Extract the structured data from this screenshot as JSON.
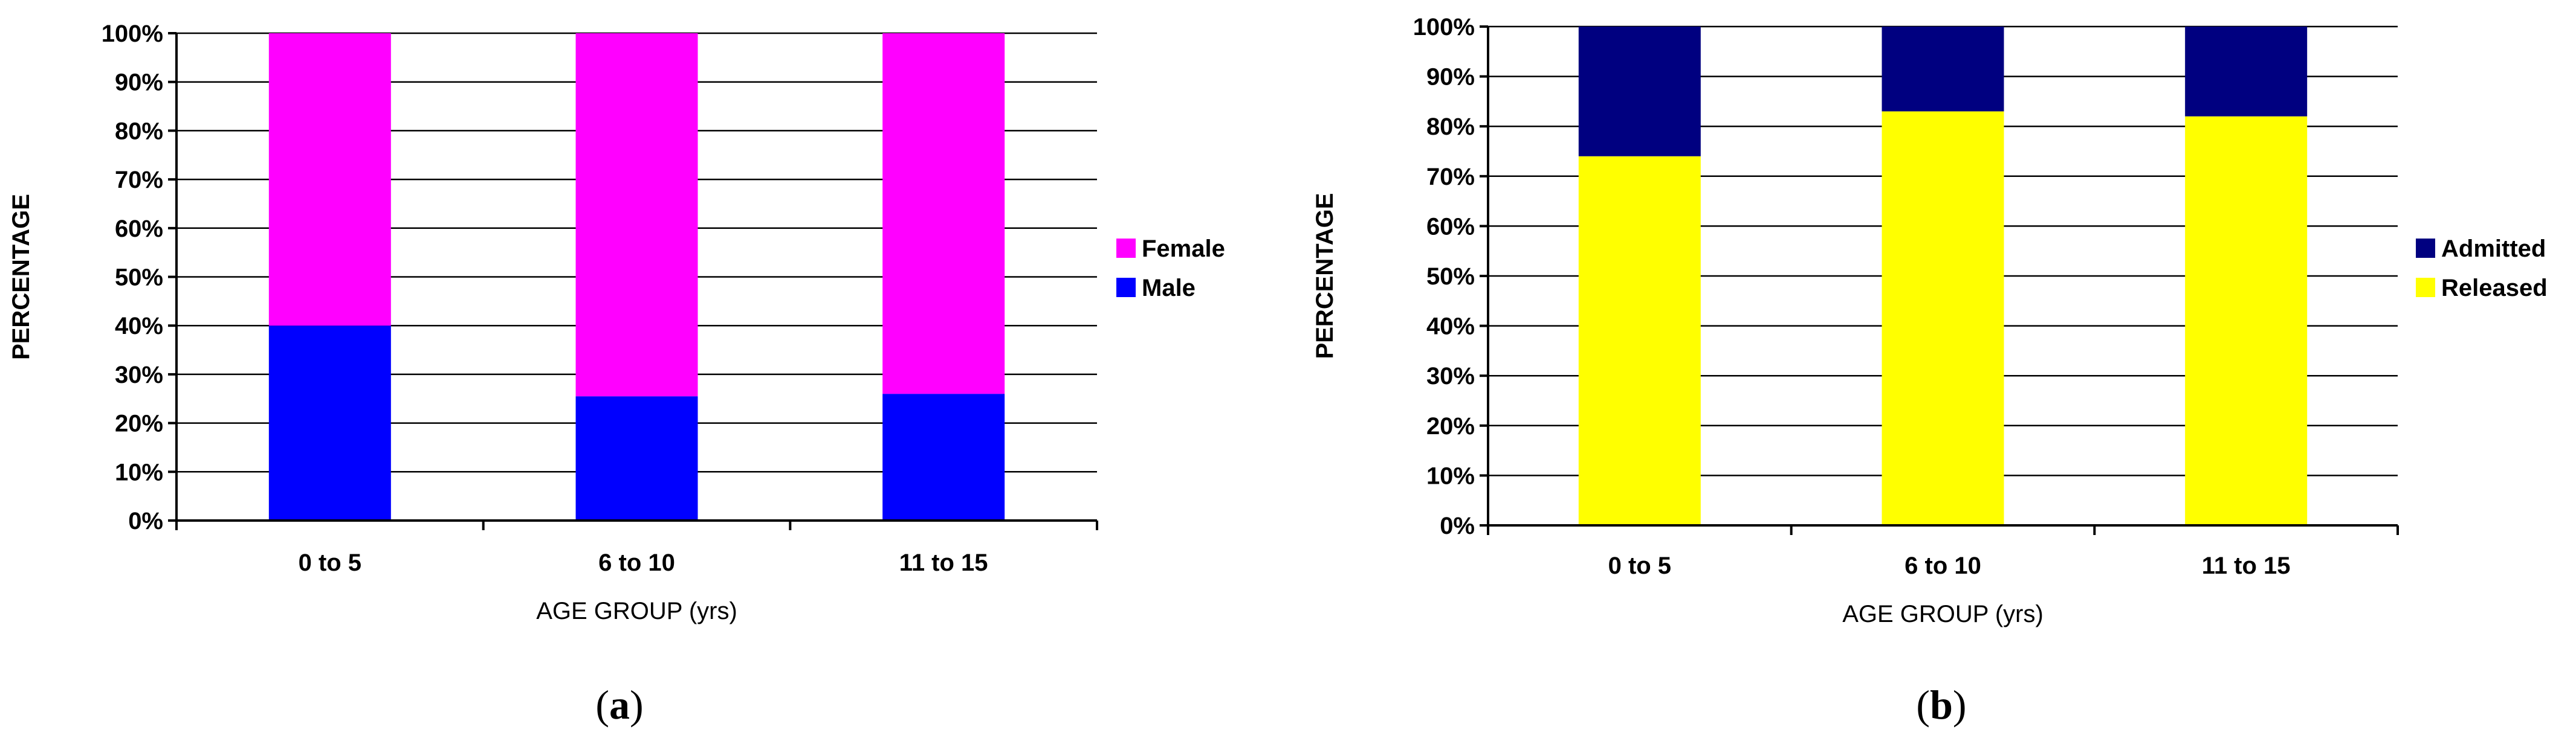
{
  "chart_data": [
    {
      "type": "bar",
      "stacked": true,
      "caption": "(a)",
      "categories": [
        "0 to 5",
        "6 to 10",
        "11 to 15"
      ],
      "series": [
        {
          "name": "Male",
          "color": "#0000ff",
          "values": [
            40,
            25.5,
            26
          ]
        },
        {
          "name": "Female",
          "color": "#ff00ff",
          "values": [
            60,
            74.5,
            74
          ]
        }
      ],
      "xlabel": "AGE GROUP (yrs)",
      "ylabel": "PERCENTAGE",
      "ylim": [
        0,
        100
      ],
      "yticks": [
        "0%",
        "10%",
        "20%",
        "30%",
        "40%",
        "50%",
        "60%",
        "70%",
        "80%",
        "90%",
        "100%"
      ],
      "grid": true,
      "legend_position": "right",
      "legend_order": [
        "Female",
        "Male"
      ]
    },
    {
      "type": "bar",
      "stacked": true,
      "caption": "(b)",
      "categories": [
        "0 to 5",
        "6 to 10",
        "11 to 15"
      ],
      "series": [
        {
          "name": "Released",
          "color": "#ffff00",
          "values": [
            74,
            83,
            82
          ]
        },
        {
          "name": "Admitted",
          "color": "#000080",
          "values": [
            26,
            17,
            18
          ]
        }
      ],
      "xlabel": "AGE GROUP (yrs)",
      "ylabel": "PERCENTAGE",
      "ylim": [
        0,
        100
      ],
      "yticks": [
        "0%",
        "10%",
        "20%",
        "30%",
        "40%",
        "50%",
        "60%",
        "70%",
        "80%",
        "90%",
        "100%"
      ],
      "grid": true,
      "legend_position": "right",
      "legend_order": [
        "Admitted",
        "Released"
      ]
    }
  ]
}
